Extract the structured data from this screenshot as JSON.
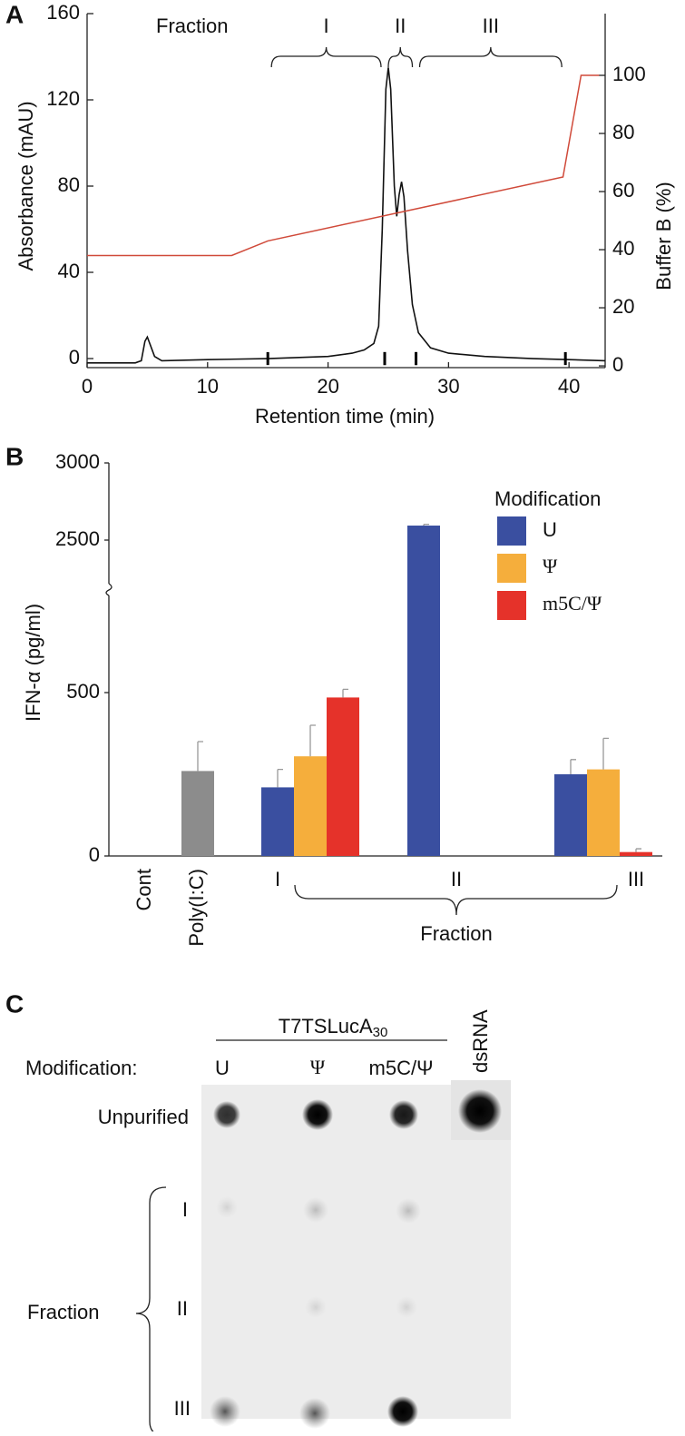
{
  "chart_data": [
    {
      "type": "line",
      "panel": "A",
      "title": "Fraction",
      "xlabel": "Retention time (min)",
      "ylabel": "Absorbance (mAU)",
      "y2label": "Buffer B (%)",
      "xlim": [
        0,
        43
      ],
      "xticks": [
        0,
        10,
        20,
        30,
        40
      ],
      "ylim": [
        -4.2,
        160
      ],
      "yticks": [
        0,
        40,
        80,
        120,
        160
      ],
      "y2lim": [
        -0.6,
        121.25
      ],
      "y2ticks": [
        0,
        20,
        40,
        60,
        80,
        100
      ],
      "fractions": [
        {
          "label": "I",
          "start": 15,
          "end": 24.7
        },
        {
          "label": "II",
          "start": 24.7,
          "end": 27.3
        },
        {
          "label": "III",
          "start": 27.3,
          "end": 39.7
        }
      ],
      "series": [
        {
          "color": "#111111",
          "x": [
            0,
            4,
            4.5,
            4.8,
            5.0,
            5.2,
            5.6,
            6.2,
            10,
            15,
            20,
            22,
            23,
            23.8,
            24.2,
            24.5,
            24.8,
            25.0,
            25.2,
            25.5,
            25.7,
            25.9,
            26.1,
            26.3,
            26.6,
            27,
            27.5,
            28.5,
            30,
            33,
            37,
            40,
            43
          ],
          "values": [
            -2,
            -2,
            -1,
            8,
            10,
            7,
            1,
            -1,
            -0.5,
            0,
            1,
            2.5,
            4,
            7,
            15,
            60,
            125,
            135,
            125,
            80,
            66,
            76,
            82,
            75,
            50,
            25,
            12,
            5,
            2.5,
            1,
            0,
            -0.5,
            -1
          ]
        },
        {
          "color": "#d04a3a",
          "axis": "y2",
          "x": [
            0,
            12,
            15,
            39.5,
            41,
            42.5
          ],
          "values": [
            38,
            38,
            43,
            65,
            100,
            100
          ]
        }
      ]
    },
    {
      "type": "bar",
      "panel": "B",
      "ylabel": "IFN-α (pg/ml)",
      "legend_title": "Modification",
      "group_label": "Fraction",
      "categories": [
        "Cont",
        "Poly(I:C)",
        "I",
        "II",
        "III"
      ],
      "ylim": [
        0,
        3000
      ],
      "axis_break": [
        800,
        2200
      ],
      "yticks": [
        0,
        500,
        2500,
        3000
      ],
      "series": [
        {
          "color": "#8c8c8c",
          "values": [
            0,
            260,
            null,
            null,
            null
          ],
          "errors": [
            0,
            90,
            null,
            null,
            null
          ]
        },
        {
          "name": "U",
          "color": "#3a4fa0",
          "values": [
            null,
            null,
            210,
            2594,
            250
          ],
          "errors": [
            null,
            null,
            55,
            8,
            45
          ]
        },
        {
          "name": "Ψ",
          "color": "#f5ae3c",
          "values": [
            null,
            null,
            305,
            0,
            265
          ],
          "errors": [
            null,
            null,
            95,
            0,
            95
          ]
        },
        {
          "name": "m5C/Ψ",
          "color": "#e5322a",
          "values": [
            null,
            null,
            485,
            0,
            12
          ],
          "errors": [
            null,
            null,
            25,
            0,
            10
          ]
        }
      ]
    }
  ],
  "blot": {
    "panel": "C",
    "construct": "T7TSLucA",
    "construct_sub": "30",
    "modification_label": "Modification:",
    "columns": [
      "U",
      "Ψ",
      "m5C/Ψ",
      "dsRNA"
    ],
    "rows": [
      "Unpurified",
      "I",
      "II",
      "III"
    ],
    "group_label": "Fraction"
  }
}
